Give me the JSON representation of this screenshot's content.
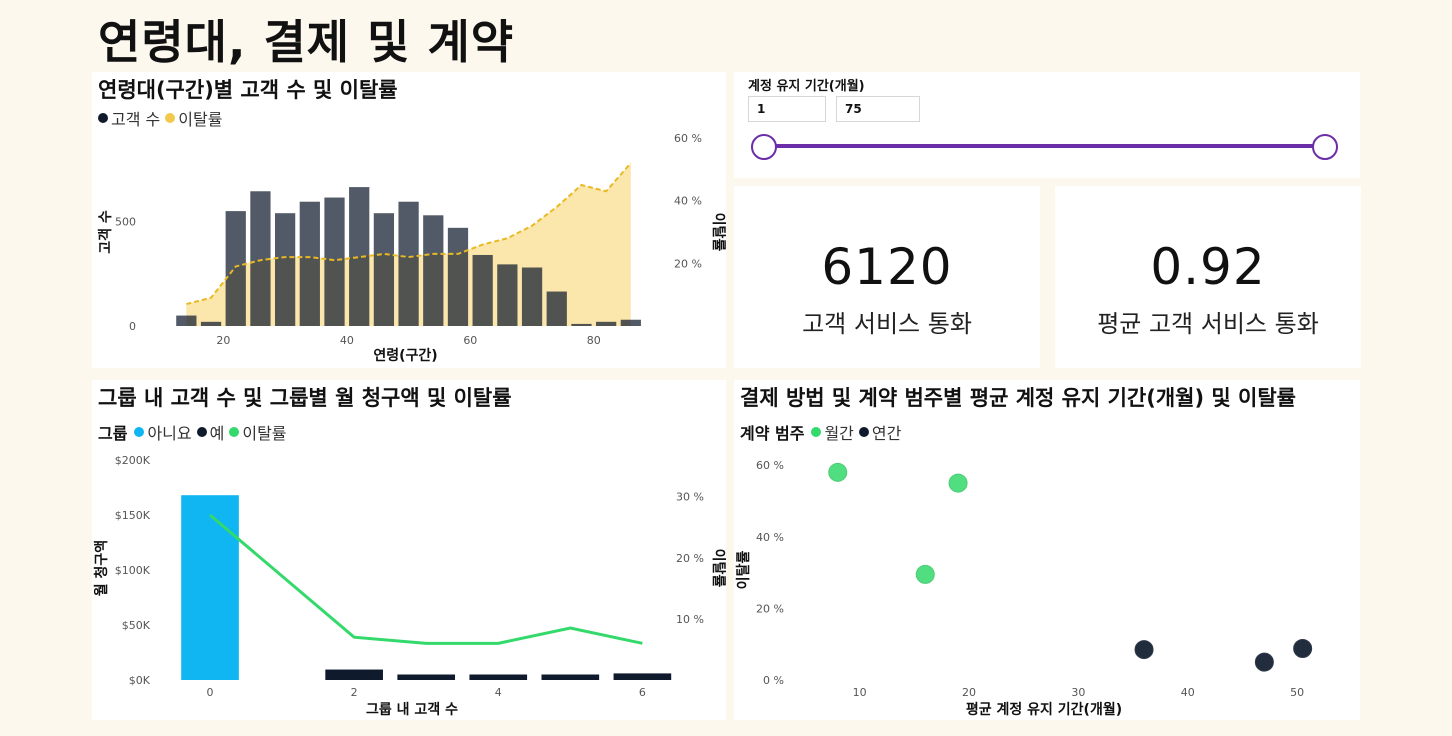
{
  "page": {
    "title": "연령대, 결제 및 계약"
  },
  "colors": {
    "navy": "#0f1b2d",
    "yellow": "#f2c94c",
    "yellow_fill": "#fbe3a3",
    "cyan": "#10b6f2",
    "green": "#33d96a",
    "purple": "#6b2ea8"
  },
  "slicer": {
    "title": "계정 유지 기간(개월)",
    "min_value": "1",
    "max_value": "75",
    "range": [
      1,
      75
    ]
  },
  "kpis": [
    {
      "value": "6120",
      "label": "고객 서비스 통화"
    },
    {
      "value": "0.92",
      "label": "평균 고객 서비스 통화"
    }
  ],
  "chart1": {
    "title": "연령대(구간)별 고객 수 및 이탈률",
    "legend": [
      {
        "label": "고객 수",
        "color": "#0f1b2d"
      },
      {
        "label": "이탈률",
        "color": "#f2c94c"
      }
    ]
  },
  "chart2": {
    "title": "그룹 내 고객 수 및 그룹별 월 청구액 및 이탈률",
    "legend_title": "그룹",
    "legend": [
      {
        "label": "아니요",
        "color": "#10b6f2"
      },
      {
        "label": "예",
        "color": "#0f1b2d"
      },
      {
        "label": "이탈률",
        "color": "#33d96a"
      }
    ]
  },
  "chart3": {
    "title": "결제 방법 및 계약 범주별 평균 계정 유지 기간(개월) 및 이탈률",
    "legend_title": "계약 범주",
    "legend": [
      {
        "label": "월간",
        "color": "#33d96a"
      },
      {
        "label": "연간",
        "color": "#0f1b2d"
      }
    ]
  },
  "chart_data": [
    {
      "type": "bar",
      "title": "연령대(구간)별 고객 수 및 이탈률",
      "xlabel": "연령(구간)",
      "ylabel": "고객 수",
      "y2label": "이탈률",
      "xlim": [
        12,
        87
      ],
      "ylim": [
        0,
        900
      ],
      "y2lim": [
        0,
        60
      ],
      "x_ticks": [
        "20",
        "40",
        "60",
        "80"
      ],
      "y_ticks": [
        "0",
        "500"
      ],
      "y2_ticks": [
        "20 %",
        "40 %",
        "60 %"
      ],
      "x": [
        14,
        18,
        22,
        26,
        30,
        34,
        38,
        42,
        46,
        50,
        54,
        58,
        62,
        66,
        70,
        74,
        78,
        82,
        86
      ],
      "series": [
        {
          "name": "고객 수",
          "kind": "bar",
          "values": [
            50,
            20,
            550,
            645,
            540,
            595,
            615,
            665,
            540,
            595,
            530,
            470,
            340,
            295,
            280,
            165,
            10,
            20,
            30
          ]
        },
        {
          "name": "이탈률",
          "kind": "area",
          "values": [
            7,
            9,
            19,
            21,
            22,
            22,
            21,
            22,
            23,
            22,
            23,
            23,
            26,
            28,
            32,
            38,
            45,
            43,
            52
          ]
        }
      ]
    },
    {
      "type": "bar",
      "title": "그룹 내 고객 수 및 그룹별 월 청구액 및 이탈률",
      "xlabel": "그룹 내 고객 수",
      "ylabel": "월 청구액",
      "y2label": "이탈률",
      "xlim": [
        -0.5,
        6.3
      ],
      "ylim": [
        0,
        200000
      ],
      "y2lim": [
        0,
        36
      ],
      "x_ticks": [
        "0",
        "2",
        "4",
        "6"
      ],
      "y_ticks": [
        "$0K",
        "$50K",
        "$100K",
        "$150K",
        "$200K"
      ],
      "y2_ticks": [
        "10 %",
        "20 %",
        "30 %"
      ],
      "x": [
        0,
        2,
        3,
        4,
        5,
        6
      ],
      "series": [
        {
          "name": "아니요",
          "kind": "bar",
          "values": [
            168000,
            0,
            0,
            0,
            0,
            0
          ]
        },
        {
          "name": "예",
          "kind": "bar",
          "values": [
            0,
            9500,
            5000,
            5000,
            5000,
            6000
          ]
        },
        {
          "name": "이탈률",
          "kind": "line",
          "values": [
            27,
            7,
            6,
            6,
            8.5,
            6
          ]
        }
      ]
    },
    {
      "type": "scatter",
      "title": "결제 방법 및 계약 범주별 평균 계정 유지 기간(개월) 및 이탈률",
      "xlabel": "평균 계정 유지 기간(개월)",
      "ylabel": "이탈률",
      "xlim": [
        4,
        53
      ],
      "ylim": [
        0,
        62
      ],
      "x_ticks": [
        "10",
        "20",
        "30",
        "40",
        "50"
      ],
      "y_ticks": [
        "0 %",
        "20 %",
        "40 %",
        "60 %"
      ],
      "series": [
        {
          "name": "월간",
          "points": [
            [
              8,
              58
            ],
            [
              19,
              55
            ],
            [
              16,
              29.5
            ]
          ]
        },
        {
          "name": "연간",
          "points": [
            [
              36,
              8.5
            ],
            [
              47,
              5
            ],
            [
              50.5,
              8.8
            ]
          ]
        }
      ]
    }
  ]
}
